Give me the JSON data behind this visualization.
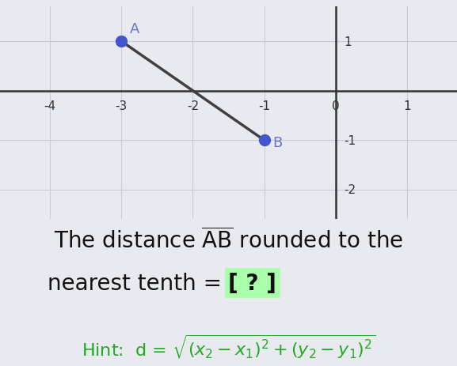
{
  "point_A": [
    -3,
    1
  ],
  "point_B": [
    -1,
    -1
  ],
  "label_A": "A",
  "label_B": "B",
  "point_color": "#4455cc",
  "line_color": "#404040",
  "bg_color": "#e8eaf0",
  "grid_color": "#c8ccd8",
  "axis_color": "#333333",
  "xlim": [
    -4.7,
    1.7
  ],
  "ylim": [
    -2.6,
    1.7
  ],
  "xticks": [
    -4,
    -3,
    -2,
    -1,
    0,
    1
  ],
  "yticks": [
    -2,
    -1,
    1
  ],
  "hint_color": "#22aa22",
  "bracket_bg": "#aaffaa",
  "main_text_color": "#111111",
  "label_color": "#6677cc"
}
